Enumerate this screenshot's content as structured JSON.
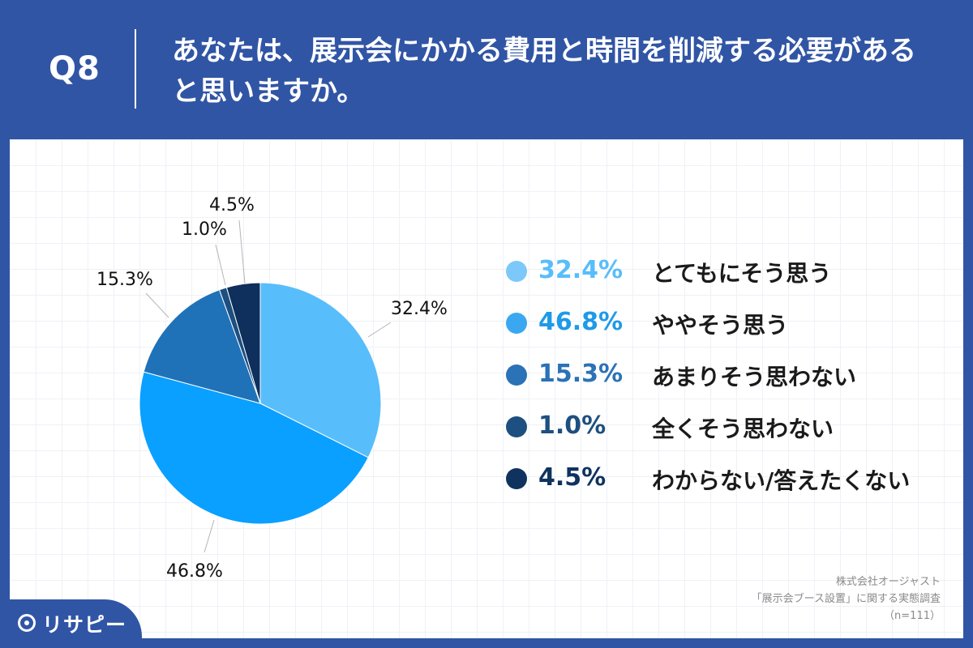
{
  "header": {
    "question_number": "Q8",
    "question_text_line1": "あなたは、展示会にかかる費用と時間を削減する必要がある",
    "question_text_line2": "と思いますか。"
  },
  "chart_data": {
    "type": "pie",
    "title": "",
    "categories": [
      "とてもにそう思う",
      "ややそう思う",
      "あまりそう思わない",
      "全くそう思わない",
      "わからない/答えたくない"
    ],
    "values": [
      32.4,
      46.8,
      15.3,
      1.0,
      4.5
    ],
    "value_labels": [
      "32.4%",
      "46.8%",
      "15.3%",
      "1.0%",
      "4.5%"
    ],
    "colors": [
      "#58bdfb",
      "#0aa0ff",
      "#1f72b8",
      "#1d4f80",
      "#0f2f5c"
    ],
    "legend_placement": "right",
    "start_direction": "12 o'clock, clockwise"
  },
  "legend": {
    "items": [
      {
        "pct": "32.4%",
        "label": "とてもにそう思う",
        "color": "#7cc8fa",
        "pct_color": "#58bdfb"
      },
      {
        "pct": "46.8%",
        "label": "ややそう思う",
        "color": "#3aa8f0",
        "pct_color": "#1e9ae8"
      },
      {
        "pct": "15.3%",
        "label": "あまりそう思わない",
        "color": "#2b72b6",
        "pct_color": "#2b72b6"
      },
      {
        "pct": "1.0%",
        "label": "全くそう思わない",
        "color": "#1d4f80",
        "pct_color": "#1d4f80"
      },
      {
        "pct": "4.5%",
        "label": "わからない/答えたくない",
        "color": "#10325f",
        "pct_color": "#10325f"
      }
    ]
  },
  "footer": {
    "line1": "株式会社オージャスト",
    "line2": "「展示会ブース設置」に関する実態調査",
    "line3": "（n=111）"
  },
  "logo": {
    "text": "リサピー"
  }
}
